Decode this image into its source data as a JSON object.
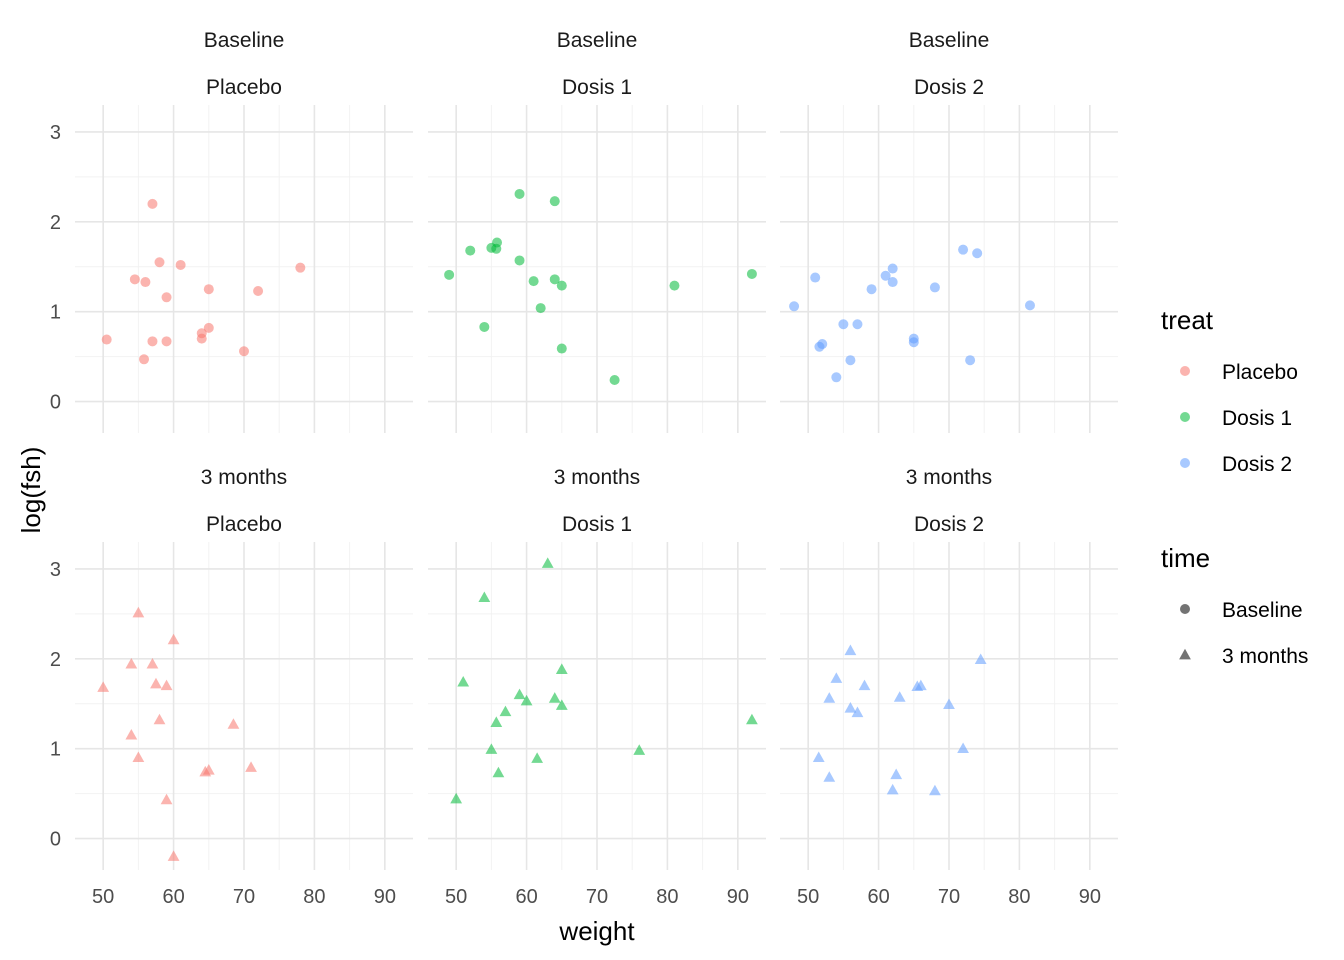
{
  "chart_data": {
    "type": "scatter",
    "xlabel": "weight",
    "ylabel": "log(fsh)",
    "xlim": [
      46,
      94
    ],
    "ylim": [
      -0.35,
      3.3
    ],
    "x_ticks": [
      50,
      60,
      70,
      80,
      90
    ],
    "y_ticks": [
      0,
      1,
      2,
      3
    ],
    "grid": true,
    "legend_placement": "right",
    "legends": [
      {
        "title": "treat",
        "key": "color",
        "entries": [
          {
            "label": "Placebo",
            "color": "#F8766D"
          },
          {
            "label": "Dosis 1",
            "color": "#00BA38"
          },
          {
            "label": "Dosis 2",
            "color": "#619CFF"
          }
        ]
      },
      {
        "title": "time",
        "key": "shape",
        "entries": [
          {
            "label": "Baseline",
            "shape": "circle"
          },
          {
            "label": "3 months",
            "shape": "triangle"
          }
        ]
      }
    ],
    "panels": [
      {
        "row": "Baseline",
        "col": "Placebo",
        "color": "#F8766D",
        "shape": "circle",
        "points": [
          [
            50.5,
            0.69
          ],
          [
            54.5,
            1.36
          ],
          [
            55.8,
            0.47
          ],
          [
            56,
            1.33
          ],
          [
            57,
            2.2
          ],
          [
            57,
            0.67
          ],
          [
            58,
            1.55
          ],
          [
            59,
            1.16
          ],
          [
            59,
            0.67
          ],
          [
            61,
            1.52
          ],
          [
            64,
            0.76
          ],
          [
            64,
            0.7
          ],
          [
            65,
            1.25
          ],
          [
            65,
            0.82
          ],
          [
            70,
            0.56
          ],
          [
            72,
            1.23
          ],
          [
            78,
            1.49
          ]
        ]
      },
      {
        "row": "Baseline",
        "col": "Dosis 1",
        "color": "#00BA38",
        "shape": "circle",
        "points": [
          [
            49,
            1.41
          ],
          [
            52,
            1.68
          ],
          [
            54,
            0.83
          ],
          [
            55,
            1.71
          ],
          [
            55.7,
            1.7
          ],
          [
            55.8,
            1.77
          ],
          [
            59,
            2.31
          ],
          [
            59,
            1.57
          ],
          [
            61,
            1.34
          ],
          [
            62,
            1.04
          ],
          [
            64,
            2.23
          ],
          [
            64,
            1.36
          ],
          [
            65,
            1.29
          ],
          [
            65,
            0.59
          ],
          [
            72.5,
            0.24
          ],
          [
            81,
            1.29
          ],
          [
            92,
            1.42
          ]
        ]
      },
      {
        "row": "Baseline",
        "col": "Dosis 2",
        "color": "#619CFF",
        "shape": "circle",
        "points": [
          [
            48,
            1.06
          ],
          [
            51,
            1.38
          ],
          [
            51.6,
            0.61
          ],
          [
            52,
            0.64
          ],
          [
            54,
            0.27
          ],
          [
            55,
            0.86
          ],
          [
            56,
            0.46
          ],
          [
            57,
            0.86
          ],
          [
            59,
            1.25
          ],
          [
            61,
            1.4
          ],
          [
            62,
            1.48
          ],
          [
            62,
            1.33
          ],
          [
            65,
            0.7
          ],
          [
            65,
            0.66
          ],
          [
            68,
            1.27
          ],
          [
            72,
            1.69
          ],
          [
            73,
            0.46
          ],
          [
            74,
            1.65
          ],
          [
            81.5,
            1.07
          ]
        ]
      },
      {
        "row": "3 months",
        "col": "Placebo",
        "color": "#F8766D",
        "shape": "triangle",
        "points": [
          [
            50,
            1.68
          ],
          [
            54,
            1.15
          ],
          [
            54,
            1.94
          ],
          [
            55,
            2.51
          ],
          [
            55,
            0.9
          ],
          [
            57,
            1.94
          ],
          [
            57.5,
            1.72
          ],
          [
            58,
            1.32
          ],
          [
            59,
            1.7
          ],
          [
            59,
            0.43
          ],
          [
            60,
            2.21
          ],
          [
            60,
            -0.2
          ],
          [
            64.5,
            0.74
          ],
          [
            65,
            0.76
          ],
          [
            68.5,
            1.27
          ],
          [
            71,
            0.79
          ]
        ]
      },
      {
        "row": "3 months",
        "col": "Dosis 1",
        "color": "#00BA38",
        "shape": "triangle",
        "points": [
          [
            50,
            0.44
          ],
          [
            51,
            1.74
          ],
          [
            54,
            2.68
          ],
          [
            55,
            0.99
          ],
          [
            55.7,
            1.29
          ],
          [
            56,
            0.73
          ],
          [
            57,
            1.41
          ],
          [
            59,
            1.6
          ],
          [
            60,
            1.53
          ],
          [
            61.5,
            0.89
          ],
          [
            63,
            3.06
          ],
          [
            64,
            1.56
          ],
          [
            65,
            1.88
          ],
          [
            65,
            1.48
          ],
          [
            76,
            0.98
          ],
          [
            92,
            1.32
          ]
        ]
      },
      {
        "row": "3 months",
        "col": "Dosis 2",
        "color": "#619CFF",
        "shape": "triangle",
        "points": [
          [
            51.5,
            0.9
          ],
          [
            53,
            1.56
          ],
          [
            53,
            0.68
          ],
          [
            54,
            1.78
          ],
          [
            56,
            2.09
          ],
          [
            56,
            1.45
          ],
          [
            57,
            1.4
          ],
          [
            58,
            1.7
          ],
          [
            62,
            0.54
          ],
          [
            62.5,
            0.71
          ],
          [
            63,
            1.57
          ],
          [
            65.5,
            1.69
          ],
          [
            66,
            1.7
          ],
          [
            68,
            0.53
          ],
          [
            70,
            1.49
          ],
          [
            72,
            1.0
          ],
          [
            74.5,
            1.99
          ]
        ]
      }
    ]
  }
}
